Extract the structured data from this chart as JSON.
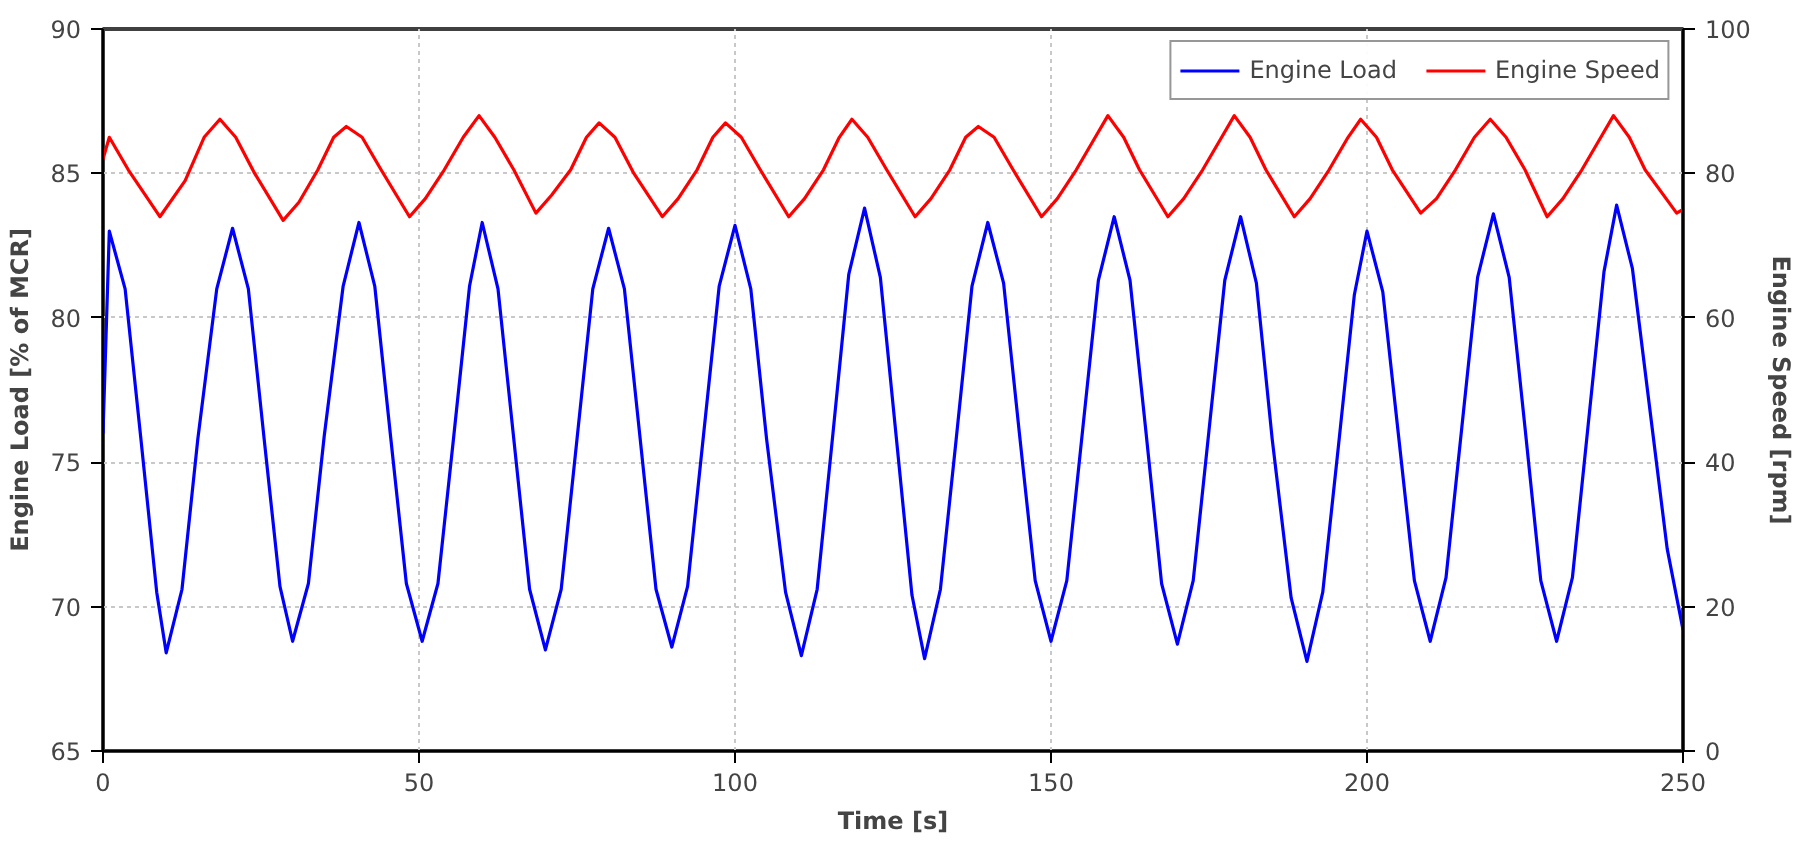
{
  "chart_data": {
    "type": "line",
    "xlabel": "Time [s]",
    "ylabel": "Engine Load [% of MCR]",
    "y2label": "Engine Speed [rpm]",
    "xlim": [
      0,
      250
    ],
    "xticks": [
      0,
      50,
      100,
      150,
      200,
      250
    ],
    "ylim": [
      65,
      90
    ],
    "yticks": [
      65,
      70,
      75,
      80,
      85,
      90
    ],
    "y2lim": [
      0,
      100
    ],
    "y2ticks": [
      0,
      20,
      40,
      60,
      80,
      100
    ],
    "grid": true,
    "legend": "top right",
    "marker": "none",
    "line_style": "solid",
    "series": [
      {
        "name": "Engine Load",
        "color": "#0000ff",
        "x": [
          0,
          1,
          3.5,
          6,
          8.5,
          10,
          12.5,
          15,
          18,
          20.5,
          23,
          25.5,
          28,
          30,
          32.5,
          35,
          38,
          40.5,
          43,
          45.5,
          48,
          50.5,
          53,
          55.5,
          58,
          60,
          62.5,
          65,
          67.5,
          70,
          72.5,
          75,
          77.5,
          80,
          82.5,
          85,
          87.5,
          90,
          92.5,
          95,
          97.5,
          100,
          102.5,
          105,
          108,
          110.5,
          113,
          115.5,
          118,
          120.5,
          123,
          125.5,
          128,
          130,
          132.5,
          135,
          137.5,
          140,
          142.5,
          145,
          147.5,
          150,
          152.5,
          155,
          157.5,
          160,
          162.5,
          165,
          167.5,
          170,
          172.5,
          175,
          177.5,
          180,
          182.5,
          185,
          188,
          190.5,
          193,
          195.5,
          198,
          200,
          202.5,
          205,
          207.5,
          210,
          212.5,
          215,
          217.5,
          220,
          222.5,
          225,
          227.5,
          230,
          232.5,
          235,
          237.5,
          239.5,
          242,
          245,
          247.5,
          250
        ],
        "values": [
          76,
          83.0,
          81.0,
          75.8,
          70.5,
          68.4,
          70.6,
          75.8,
          81.0,
          83.1,
          81.0,
          75.8,
          70.7,
          68.8,
          70.8,
          75.9,
          81.1,
          83.3,
          81.1,
          75.9,
          70.8,
          68.8,
          70.8,
          75.9,
          81.1,
          83.3,
          81.0,
          75.8,
          70.6,
          68.5,
          70.6,
          75.8,
          81.0,
          83.1,
          81.0,
          75.8,
          70.6,
          68.6,
          70.7,
          75.9,
          81.1,
          83.2,
          81.0,
          75.8,
          70.5,
          68.3,
          70.6,
          76.0,
          81.5,
          83.8,
          81.4,
          75.9,
          70.4,
          68.2,
          70.6,
          75.8,
          81.1,
          83.3,
          81.2,
          76.0,
          70.9,
          68.8,
          70.9,
          76.1,
          81.3,
          83.5,
          81.3,
          76.1,
          70.8,
          68.7,
          70.9,
          76.1,
          81.3,
          83.5,
          81.2,
          75.8,
          70.3,
          68.1,
          70.5,
          75.6,
          80.8,
          83.0,
          80.9,
          75.9,
          70.9,
          68.8,
          71.0,
          76.2,
          81.4,
          83.6,
          81.4,
          76.2,
          70.9,
          68.8,
          71.0,
          76.3,
          81.6,
          83.9,
          81.7,
          76.4,
          72.0,
          69.2
        ]
      },
      {
        "name": "Engine Speed",
        "color": "#ff0000",
        "axis": "y2",
        "x": [
          0,
          1,
          4,
          9,
          13,
          16,
          18.5,
          21,
          24,
          28.5,
          31,
          34,
          36.5,
          38.5,
          41,
          44,
          48.5,
          51,
          54,
          57,
          59.5,
          62,
          65,
          68.5,
          71,
          74,
          76.5,
          78.5,
          81,
          84,
          88.5,
          91,
          94,
          96.5,
          98.5,
          101,
          104,
          108.5,
          111,
          114,
          116.5,
          118.5,
          121,
          124,
          128.5,
          131,
          134,
          136.5,
          138.5,
          141,
          144,
          148.5,
          151,
          154,
          157,
          159,
          161.5,
          164,
          168.5,
          171,
          174,
          177,
          179,
          181.5,
          184,
          188.5,
          191,
          194,
          197,
          199,
          201.5,
          204,
          208.5,
          211,
          214,
          217,
          219.5,
          222,
          225,
          228.5,
          231,
          234,
          237,
          239,
          241.5,
          244,
          249,
          250
        ],
        "values": [
          82,
          85,
          80.5,
          74,
          79,
          85,
          87.5,
          85,
          80,
          73.5,
          76,
          80.5,
          85,
          86.5,
          85,
          80.5,
          74,
          76.5,
          80.5,
          85,
          88,
          85,
          80.5,
          74.5,
          77,
          80.5,
          85,
          87,
          85,
          80,
          74,
          76.5,
          80.5,
          85,
          87,
          85,
          80.5,
          74,
          76.5,
          80.5,
          85,
          87.5,
          85,
          80.5,
          74,
          76.5,
          80.5,
          85,
          86.5,
          85,
          80.5,
          74,
          76.5,
          80.5,
          85,
          88,
          85,
          80.5,
          74,
          76.5,
          80.5,
          85,
          88,
          85,
          80.5,
          74,
          76.5,
          80.5,
          85,
          87.5,
          85,
          80.5,
          74.5,
          76.5,
          80.5,
          85,
          87.5,
          85,
          80.5,
          74,
          76.5,
          80.5,
          85,
          88,
          85,
          80.5,
          74.5,
          75
        ]
      }
    ]
  }
}
